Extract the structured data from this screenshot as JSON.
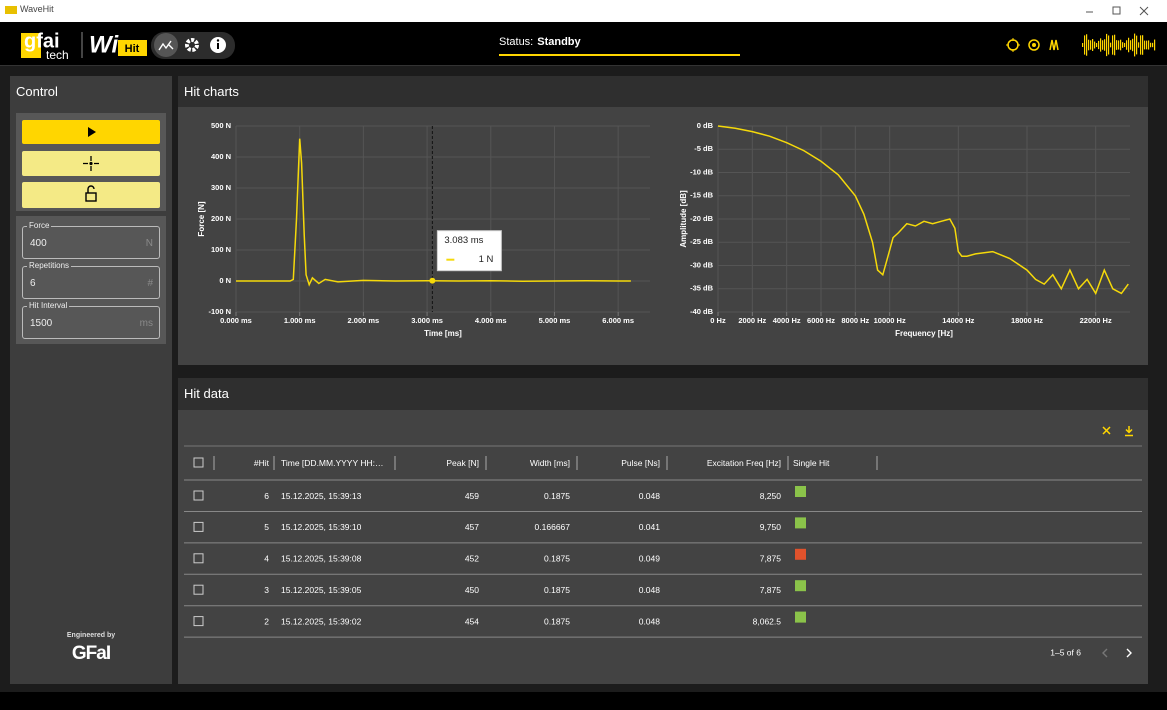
{
  "window": {
    "title": "WaveHit"
  },
  "header": {
    "logo_top": "gfai",
    "logo_bottom": "tech",
    "app_logo": "Wi",
    "app_badge": "Hit",
    "status_label": "Status:",
    "status_value": "Standby"
  },
  "control": {
    "title": "Control",
    "fields": [
      {
        "label": "Force",
        "value": "400",
        "unit": "N"
      },
      {
        "label": "Repetitions",
        "value": "6",
        "unit": "#"
      },
      {
        "label": "Hit Interval",
        "value": "1500",
        "unit": "ms"
      }
    ],
    "footer_label": "Engineered by",
    "footer_logo": "GFaI"
  },
  "hit_charts": {
    "title": "Hit charts",
    "charts": [
      {
        "type": "line",
        "color": "#f5d90a",
        "xlabel": "Time [ms]",
        "ylabel": "Force [N]",
        "grid": true,
        "x": [
          0,
          0.5,
          0.85,
          0.9,
          0.95,
          1.0,
          1.03,
          1.07,
          1.1,
          1.15,
          1.2,
          1.3,
          1.4,
          1.6,
          2.0,
          2.5,
          3.0,
          3.5,
          4.0,
          4.5,
          5.0,
          5.5,
          6.0,
          6.2
        ],
        "values": [
          0,
          0,
          0,
          5,
          200,
          459,
          380,
          150,
          20,
          -12,
          10,
          -8,
          5,
          -3,
          2,
          0,
          1,
          0,
          1,
          -1,
          0,
          1,
          0,
          0
        ],
        "xlim": [
          0,
          6.5
        ],
        "ylim": [
          -100,
          500
        ],
        "xticks": [
          {
            "value": 0,
            "label": "0.000 ms"
          },
          {
            "value": 1,
            "label": "1.000 ms"
          },
          {
            "value": 2,
            "label": "2.000 ms"
          },
          {
            "value": 3,
            "label": "3.000 ms"
          },
          {
            "value": 4,
            "label": "4.000 ms"
          },
          {
            "value": 5,
            "label": "5.000 ms"
          },
          {
            "value": 6,
            "label": "6.000 ms"
          }
        ],
        "yticks": [
          {
            "value": 500,
            "label": "500 N"
          },
          {
            "value": 400,
            "label": "400 N"
          },
          {
            "value": 300,
            "label": "300 N"
          },
          {
            "value": 200,
            "label": "200 N"
          },
          {
            "value": 100,
            "label": "100 N"
          },
          {
            "value": 0,
            "label": "0 N"
          },
          {
            "value": -100,
            "label": "-100 N"
          }
        ],
        "cursor": {
          "x": {
            "value": 3.083,
            "label": "3.083 ms"
          },
          "y": {
            "value": 1,
            "label": "1 N"
          }
        }
      },
      {
        "type": "line",
        "color": "#f5d90a",
        "xlabel": "Frequency [Hz]",
        "ylabel": "Amplitude [dB]",
        "grid": true,
        "x": [
          0,
          1000,
          2000,
          3000,
          4000,
          5000,
          6000,
          7000,
          8000,
          8500,
          9000,
          9300,
          9600,
          9900,
          10200,
          10500,
          11000,
          11500,
          12000,
          12500,
          13000,
          13500,
          13800,
          14000,
          14200,
          14500,
          15000,
          16000,
          17000,
          18000,
          18500,
          19000,
          19500,
          20000,
          20500,
          21000,
          21500,
          22000,
          22500,
          23000,
          23500,
          23900
        ],
        "values": [
          0,
          -0.5,
          -1.2,
          -2.2,
          -3.6,
          -5.3,
          -7.6,
          -10.5,
          -15,
          -19,
          -25,
          -31,
          -32,
          -28,
          -24,
          -23,
          -21,
          -21.5,
          -20.5,
          -21,
          -20.5,
          -20,
          -22,
          -27,
          -28,
          -28,
          -27.5,
          -27,
          -28.5,
          -31,
          -33,
          -34,
          -32,
          -35,
          -31,
          -35,
          -33,
          -36,
          -31,
          -35,
          -36,
          -34
        ],
        "xlim": [
          0,
          24000
        ],
        "ylim": [
          -40,
          0
        ],
        "xticks": [
          {
            "value": 0,
            "label": "0 Hz"
          },
          {
            "value": 2000,
            "label": "2000 Hz"
          },
          {
            "value": 4000,
            "label": "4000 Hz"
          },
          {
            "value": 6000,
            "label": "6000 Hz"
          },
          {
            "value": 8000,
            "label": "8000 Hz"
          },
          {
            "value": 10000,
            "label": "10000 Hz"
          },
          {
            "value": 14000,
            "label": "14000 Hz"
          },
          {
            "value": 18000,
            "label": "18000 Hz"
          },
          {
            "value": 22000,
            "label": "22000 Hz"
          }
        ],
        "yticks": [
          {
            "value": 0,
            "label": "0 dB"
          },
          {
            "value": -5,
            "label": "-5 dB"
          },
          {
            "value": -10,
            "label": "-10 dB"
          },
          {
            "value": -15,
            "label": "-15 dB"
          },
          {
            "value": -20,
            "label": "-20 dB"
          },
          {
            "value": -25,
            "label": "-25 dB"
          },
          {
            "value": -30,
            "label": "-30 dB"
          },
          {
            "value": -35,
            "label": "-35 dB"
          },
          {
            "value": -40,
            "label": "-40 dB"
          }
        ]
      }
    ]
  },
  "hit_data": {
    "title": "Hit data",
    "columns": [
      "#Hit",
      "Time [DD.MM.YYYY HH:…",
      "Peak [N]",
      "Width [ms]",
      "Pulse [Ns]",
      "Excitation Freq [Hz]",
      "Single Hit"
    ],
    "rows": [
      {
        "cells": [
          "6",
          "15.12.2025, 15:39:13",
          "459",
          "0.1875",
          "0.048",
          "8,250"
        ],
        "single_hit_color": "#8bc34a"
      },
      {
        "cells": [
          "5",
          "15.12.2025, 15:39:10",
          "457",
          "0.166667",
          "0.041",
          "9,750"
        ],
        "single_hit_color": "#8bc34a"
      },
      {
        "cells": [
          "4",
          "15.12.2025, 15:39:08",
          "452",
          "0.1875",
          "0.049",
          "7,875"
        ],
        "single_hit_color": "#e0522c"
      },
      {
        "cells": [
          "3",
          "15.12.2025, 15:39:05",
          "450",
          "0.1875",
          "0.048",
          "7,875"
        ],
        "single_hit_color": "#8bc34a"
      },
      {
        "cells": [
          "2",
          "15.12.2025, 15:39:02",
          "454",
          "0.1875",
          "0.048",
          "8,062.5"
        ],
        "single_hit_color": "#8bc34a"
      }
    ],
    "pagination": "1–5 of 6"
  }
}
